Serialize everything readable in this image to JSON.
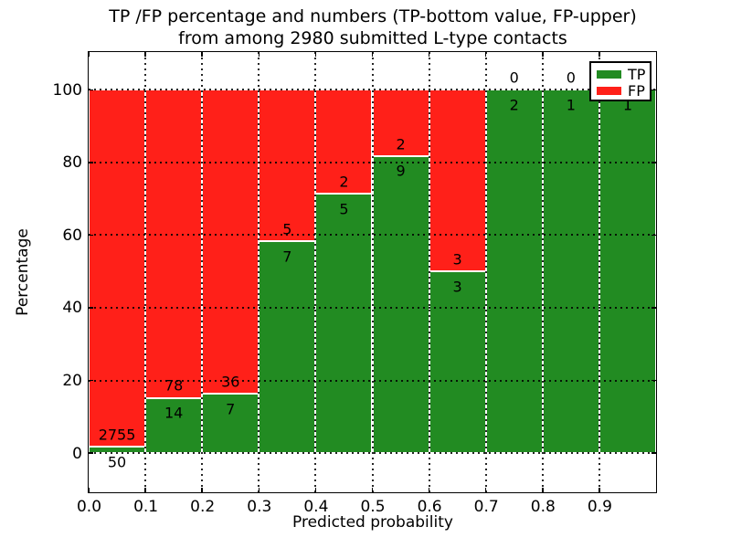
{
  "figure": {
    "title_line1": "TP /FP percentage and numbers (TP-bottom value, FP-upper)",
    "title_line2": "from among 2980 submitted L-type contacts",
    "background_color": "#ffffff"
  },
  "chart_data": {
    "type": "bar",
    "stacked": true,
    "title": "TP /FP percentage and numbers (TP-bottom value, FP-upper) from among 2980 submitted L-type contacts",
    "xlabel": "Predicted probability",
    "ylabel": "Percentage",
    "xlim": [
      0.0,
      1.0
    ],
    "ylim": [
      -10.8,
      110.4
    ],
    "x_ticks": [
      {
        "value": 0.0,
        "label": "0.0"
      },
      {
        "value": 0.1,
        "label": "0.1"
      },
      {
        "value": 0.2,
        "label": "0.2"
      },
      {
        "value": 0.3,
        "label": "0.3"
      },
      {
        "value": 0.4,
        "label": "0.4"
      },
      {
        "value": 0.5,
        "label": "0.5"
      },
      {
        "value": 0.6,
        "label": "0.6"
      },
      {
        "value": 0.7,
        "label": "0.7"
      },
      {
        "value": 0.8,
        "label": "0.8"
      },
      {
        "value": 0.9,
        "label": "0.9"
      }
    ],
    "y_ticks": [
      {
        "value": 0,
        "label": "0"
      },
      {
        "value": 20,
        "label": "20"
      },
      {
        "value": 40,
        "label": "40"
      },
      {
        "value": 60,
        "label": "60"
      },
      {
        "value": 80,
        "label": "80"
      },
      {
        "value": 100,
        "label": "100"
      }
    ],
    "grid_style": "dotted",
    "colors": {
      "tp": "#228b22",
      "fp": "#ff2019",
      "text": "#000000",
      "frame": "#000000"
    },
    "legend": {
      "position": "upper right",
      "entries": [
        {
          "label": "TP",
          "color": "#228b22"
        },
        {
          "label": "FP",
          "color": "#ff2019"
        }
      ]
    },
    "bins": [
      {
        "range": [
          0.0,
          0.1
        ],
        "tp": 50,
        "fp": 2755,
        "tp_pct": 1.78,
        "total_pct": 100
      },
      {
        "range": [
          0.1,
          0.2
        ],
        "tp": 14,
        "fp": 78,
        "tp_pct": 15.22,
        "total_pct": 100
      },
      {
        "range": [
          0.2,
          0.3
        ],
        "tp": 7,
        "fp": 36,
        "tp_pct": 16.28,
        "total_pct": 100
      },
      {
        "range": [
          0.3,
          0.4
        ],
        "tp": 7,
        "fp": 5,
        "tp_pct": 58.33,
        "total_pct": 100
      },
      {
        "range": [
          0.4,
          0.5
        ],
        "tp": 5,
        "fp": 2,
        "tp_pct": 71.43,
        "total_pct": 100
      },
      {
        "range": [
          0.5,
          0.6
        ],
        "tp": 9,
        "fp": 2,
        "tp_pct": 81.82,
        "total_pct": 100
      },
      {
        "range": [
          0.6,
          0.7
        ],
        "tp": 3,
        "fp": 3,
        "tp_pct": 50.0,
        "total_pct": 100
      },
      {
        "range": [
          0.7,
          0.8
        ],
        "tp": 2,
        "fp": 0,
        "tp_pct": 100.0,
        "total_pct": 100
      },
      {
        "range": [
          0.8,
          0.9
        ],
        "tp": 1,
        "fp": 0,
        "tp_pct": 100.0,
        "total_pct": 100
      },
      {
        "range": [
          0.9,
          1.0
        ],
        "tp": 1,
        "fp": 0,
        "tp_pct": 100.0,
        "total_pct": 100
      }
    ]
  }
}
